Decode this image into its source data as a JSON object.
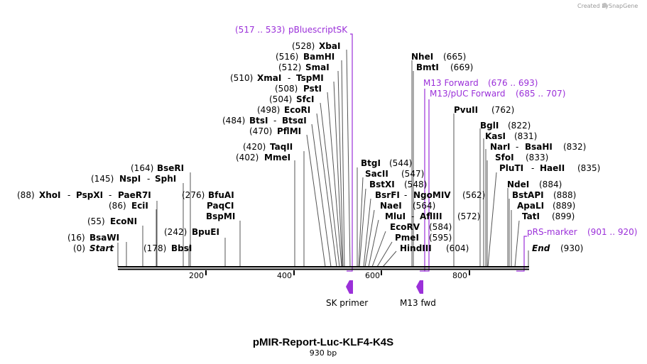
{
  "credit": {
    "prefix": "Created by",
    "brand": "SnapGene"
  },
  "map": {
    "title": "pMIR-Report-Luc-KLF4-K4S",
    "length_label": "930 bp"
  },
  "ticks": [
    {
      "label": "200"
    },
    {
      "label": "400"
    },
    {
      "label": "600"
    },
    {
      "label": "800"
    }
  ],
  "enzymes": {
    "start": {
      "pos": "(0)",
      "name": "Start"
    },
    "end": {
      "pos": "(930)",
      "name": "End"
    },
    "bsawi": {
      "pos": "(16)",
      "name": "BsaWI"
    },
    "econi": {
      "pos": "(55)",
      "name": "EcoNI"
    },
    "ecii": {
      "pos": "(86)",
      "name": "EciI"
    },
    "xhoi": {
      "pos": "(88)",
      "name": "XhoI",
      "alias1": "PspXI",
      "alias2": "PaeR7I"
    },
    "nspi": {
      "pos": "(145)",
      "name": "NspI",
      "alias1": "SphI"
    },
    "bseri": {
      "pos": "(164)",
      "name": "BseRI"
    },
    "bbsi": {
      "pos": "(178)",
      "name": "BbsI"
    },
    "bpuei": {
      "pos": "(242)",
      "name": "BpuEI"
    },
    "bfuai": {
      "pos": "(276)",
      "name": "BfuAI",
      "alias1": "PaqCI",
      "alias2": "BspMI"
    },
    "mmei": {
      "pos": "(402)",
      "name": "MmeI"
    },
    "taqii": {
      "pos": "(420)",
      "name": "TaqII"
    },
    "pflmi": {
      "pos": "(470)",
      "name": "PflMI"
    },
    "btsi": {
      "pos": "(484)",
      "name": "BtsI",
      "alias1": "BtsαI"
    },
    "ecori": {
      "pos": "(498)",
      "name": "EcoRI"
    },
    "sfci": {
      "pos": "(504)",
      "name": "SfcI"
    },
    "psti": {
      "pos": "(508)",
      "name": "PstI"
    },
    "xmai": {
      "pos": "(510)",
      "name": "XmaI",
      "alias1": "TspMI"
    },
    "smai": {
      "pos": "(512)",
      "name": "SmaI"
    },
    "bamhi": {
      "pos": "(516)",
      "name": "BamHI"
    },
    "xbai": {
      "pos": "(528)",
      "name": "XbaI"
    },
    "btgi": {
      "name": "BtgI",
      "pos": "(544)"
    },
    "sacii": {
      "name": "SacII",
      "pos": "(547)"
    },
    "bstxi": {
      "name": "BstXI",
      "pos": "(548)"
    },
    "bsrfi": {
      "name": "BsrFI",
      "alias1": "NgoMIV",
      "pos": "(562)"
    },
    "naei": {
      "name": "NaeI",
      "pos": "(564)"
    },
    "mlui": {
      "name": "MluI",
      "alias1": "AflIII",
      "pos": "(572)"
    },
    "ecorv": {
      "name": "EcoRV",
      "pos": "(584)"
    },
    "pmei": {
      "name": "PmeI",
      "pos": "(595)"
    },
    "hindiii": {
      "name": "HindIII",
      "pos": "(604)"
    },
    "nhei": {
      "name": "NheI",
      "pos": "(665)"
    },
    "bmti": {
      "name": "BmtI",
      "pos": "(669)"
    },
    "pvuii": {
      "name": "PvuII",
      "pos": "(762)"
    },
    "bgli": {
      "name": "BglI",
      "pos": "(822)"
    },
    "kasi": {
      "name": "KasI",
      "pos": "(831)"
    },
    "nari": {
      "name": "NarI",
      "alias1": "BsaHI",
      "pos": "(832)"
    },
    "sfoi": {
      "name": "SfoI",
      "pos": "(833)"
    },
    "pluti": {
      "name": "PluTI",
      "alias1": "HaeII",
      "pos": "(835)"
    },
    "ndei": {
      "name": "NdeI",
      "pos": "(884)"
    },
    "bstapi": {
      "name": "BstAPI",
      "pos": "(888)"
    },
    "apali": {
      "name": "ApaLI",
      "pos": "(889)"
    },
    "tati": {
      "name": "TatI",
      "pos": "(899)"
    }
  },
  "features": {
    "pbluescriptsk": {
      "range": "(517 .. 533)",
      "name": "pBluescriptSK"
    },
    "m13fwd": {
      "name": "M13 Forward",
      "range": "(676 .. 693)"
    },
    "m13puc": {
      "name": "M13/pUC Forward",
      "range": "(685 .. 707)"
    },
    "prsmarker": {
      "name": "pRS-marker",
      "range": "(901 .. 920)"
    }
  },
  "primers": [
    {
      "label": "SK primer"
    },
    {
      "label": "M13 fwd"
    }
  ],
  "colors": {
    "feature": "#9b30d9",
    "line": "#000000",
    "leader": "#555555"
  }
}
